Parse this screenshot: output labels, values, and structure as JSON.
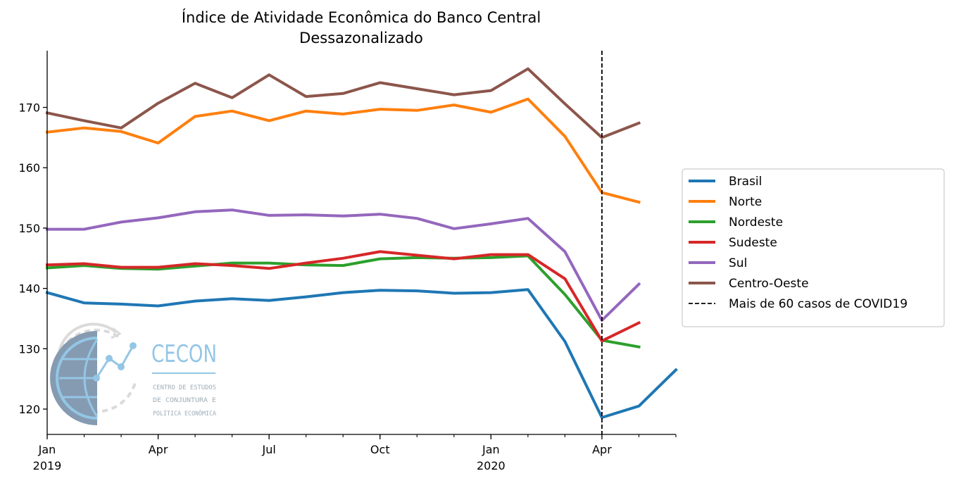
{
  "chart_data": {
    "type": "line",
    "title": "Índice de Atividade Econômica do Banco Central",
    "subtitle": "Dessazonalizado",
    "xlabel": "",
    "ylabel": "",
    "x": [
      "2019-01",
      "2019-02",
      "2019-03",
      "2019-04",
      "2019-05",
      "2019-06",
      "2019-07",
      "2019-08",
      "2019-09",
      "2019-10",
      "2019-11",
      "2019-12",
      "2020-01",
      "2020-02",
      "2020-03",
      "2020-04",
      "2020-05",
      "2020-06"
    ],
    "xlim": [
      "2019-01",
      "2020-06"
    ],
    "ylim": [
      115.8,
      179.4
    ],
    "y_ticks": [
      120,
      130,
      140,
      150,
      160,
      170
    ],
    "x_ticks": [
      {
        "x": "2019-01",
        "label": "Jan",
        "sublabel": "2019"
      },
      {
        "x": "2019-04",
        "label": "Apr",
        "sublabel": ""
      },
      {
        "x": "2019-07",
        "label": "Jul",
        "sublabel": ""
      },
      {
        "x": "2019-10",
        "label": "Oct",
        "sublabel": ""
      },
      {
        "x": "2020-01",
        "label": "Jan",
        "sublabel": "2020"
      },
      {
        "x": "2020-04",
        "label": "Apr",
        "sublabel": ""
      }
    ],
    "series": [
      {
        "name": "Brasil",
        "color": "#1f77b4",
        "values": [
          139.3,
          137.6,
          137.4,
          137.1,
          137.9,
          138.3,
          138.0,
          138.6,
          139.3,
          139.7,
          139.6,
          139.2,
          139.3,
          139.8,
          131.2,
          118.6,
          120.5,
          126.5
        ]
      },
      {
        "name": "Norte",
        "color": "#ff7f0e",
        "values": [
          165.9,
          166.6,
          166.0,
          164.1,
          168.5,
          169.4,
          167.8,
          169.4,
          168.9,
          169.7,
          169.5,
          170.4,
          169.2,
          171.4,
          165.2,
          155.9,
          154.3,
          null
        ]
      },
      {
        "name": "Nordeste",
        "color": "#2ca02c",
        "values": [
          143.4,
          143.8,
          143.3,
          143.2,
          143.7,
          144.2,
          144.2,
          143.9,
          143.8,
          144.9,
          145.1,
          145.0,
          145.1,
          145.4,
          139.0,
          131.4,
          130.3,
          null
        ]
      },
      {
        "name": "Sudeste",
        "color": "#d62728",
        "values": [
          143.9,
          144.1,
          143.5,
          143.5,
          144.1,
          143.8,
          143.3,
          144.2,
          145.0,
          146.1,
          145.5,
          144.9,
          145.6,
          145.6,
          141.6,
          131.3,
          134.3,
          null
        ]
      },
      {
        "name": "Sul",
        "color": "#9467bd",
        "values": [
          149.8,
          149.8,
          151.0,
          151.7,
          152.7,
          153.0,
          152.1,
          152.2,
          152.0,
          152.3,
          151.6,
          149.9,
          150.7,
          151.6,
          146.1,
          134.7,
          140.7,
          null
        ]
      },
      {
        "name": "Centro-Oeste",
        "color": "#8c564b",
        "values": [
          169.1,
          167.8,
          166.6,
          170.7,
          174.0,
          171.6,
          175.4,
          171.8,
          172.3,
          174.1,
          173.1,
          172.1,
          172.8,
          176.4,
          170.6,
          165.0,
          167.4,
          null
        ]
      }
    ],
    "vline": {
      "x": "2020-04",
      "name": "Mais de 60 casos de COVID19",
      "color": "#000000",
      "style": "dashed"
    },
    "legend_position": "right",
    "grid": false
  },
  "logo": {
    "name": "CECON",
    "tagline_lines": [
      "CENTRO DE ESTUDOS",
      "DE CONJUNTURA E",
      "POLÍTICA ECONÔMICA"
    ]
  }
}
